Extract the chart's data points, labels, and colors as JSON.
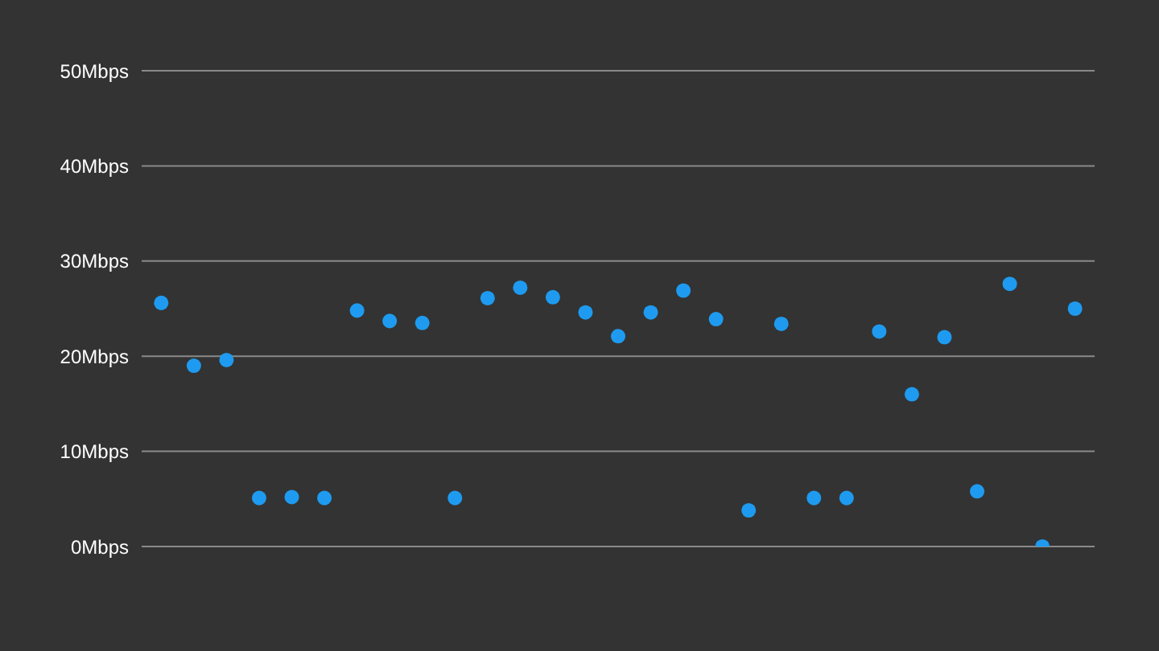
{
  "chart_data": {
    "type": "scatter",
    "categories": [
      null,
      null,
      null,
      null,
      null,
      null,
      null,
      null,
      null,
      null,
      null,
      null,
      null,
      null,
      null,
      null,
      null,
      null,
      null,
      null,
      null,
      null,
      null,
      null,
      null,
      null,
      null,
      null,
      null
    ],
    "series": [
      {
        "color": "#1e9bf0",
        "values": [
          25.6,
          19.0,
          19.6,
          5.1,
          5.2,
          5.1,
          24.8,
          23.7,
          23.5,
          5.1,
          26.1,
          27.2,
          26.2,
          24.6,
          22.1,
          24.6,
          26.9,
          23.9,
          3.8,
          23.4,
          5.1,
          5.1,
          22.6,
          16.0,
          22.0,
          5.8,
          27.6,
          0,
          25.0
        ]
      }
    ],
    "ylim": [
      0,
      50
    ],
    "yticks": [
      {
        "value": 0,
        "label": "0Mbps"
      },
      {
        "value": 10,
        "label": "10Mbps"
      },
      {
        "value": 20,
        "label": "20Mbps"
      },
      {
        "value": 30,
        "label": "30Mbps"
      },
      {
        "value": 40,
        "label": "40Mbps"
      },
      {
        "value": 50,
        "label": "50Mbps"
      }
    ],
    "grid": "y",
    "marker": "circle",
    "legend": false
  }
}
